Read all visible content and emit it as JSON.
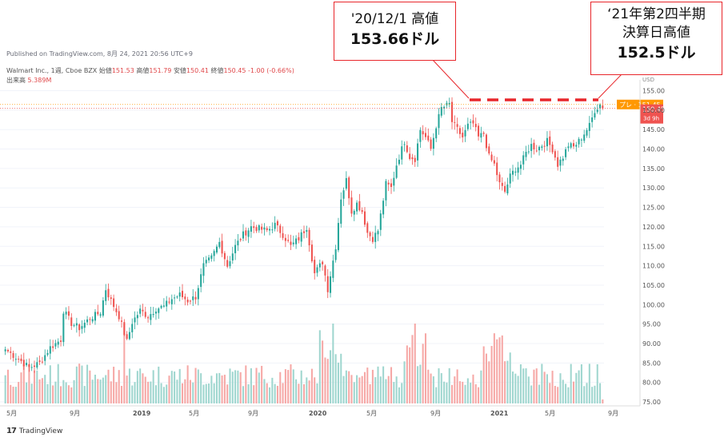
{
  "header": {
    "published": "Published on TradingView.com, 8月 24, 2021 20:56 UTC+9",
    "symbol": "Walmart Inc., 1週, Cboe BZX",
    "open_label": "始値",
    "open": "151.53",
    "high_label": "高値",
    "high": "151.79",
    "low_label": "安値",
    "low": "150.41",
    "close_label": "終値",
    "close": "150.45",
    "change": "-1.00 (-0.66%)",
    "volume_label": "出来高",
    "volume": "5.389M"
  },
  "callouts": {
    "left": {
      "line1": "'20/12/1 高値",
      "line2": "153.66ドル"
    },
    "right": {
      "line1": "‘21年第2四半期",
      "line2": "決算日高値",
      "line3": "152.5ドル"
    }
  },
  "footer": {
    "logo": "TradingView",
    "mark": "17"
  },
  "colors": {
    "up": "#26a69a",
    "down": "#ef5350",
    "vol_up": "#9fd6cf",
    "vol_down": "#f6a8a6",
    "callout": "#e8262b",
    "pre_market": "#ff9800",
    "last_price": "#ef5350"
  },
  "chart_data": {
    "type": "candlestick",
    "title": "Walmart Inc., 1週, Cboe BZX",
    "currency": "USD",
    "ylim": [
      75,
      155
    ],
    "y_ticks": [
      "155.00",
      "150.00",
      "145.00",
      "140.00",
      "135.00",
      "130.00",
      "125.00",
      "120.00",
      "115.00",
      "110.00",
      "105.00",
      "100.00",
      "95.00",
      "90.00",
      "85.00",
      "80.00",
      "75.00"
    ],
    "x_ticks": [
      "5月",
      "9月",
      "2019",
      "5月",
      "9月",
      "2020",
      "5月",
      "9月",
      "2021",
      "5月",
      "9月"
    ],
    "price_labels": {
      "pre_label": "プレ",
      "pre": "151.45",
      "last": "150.45",
      "countdown": "3d 9h"
    },
    "resistance_level": 153.66,
    "anchors": [
      [
        0,
        88.5
      ],
      [
        5,
        86.0
      ],
      [
        9,
        83.8
      ],
      [
        13,
        85.0
      ],
      [
        17,
        89.0
      ],
      [
        21,
        91.0
      ],
      [
        22,
        98.5
      ],
      [
        25,
        95.2
      ],
      [
        28,
        94.0
      ],
      [
        32,
        96.5
      ],
      [
        36,
        98.0
      ],
      [
        38,
        104.0
      ],
      [
        40,
        101.0
      ],
      [
        43,
        97.0
      ],
      [
        46,
        90.5
      ],
      [
        48,
        95.5
      ],
      [
        51,
        98.5
      ],
      [
        54,
        97.0
      ],
      [
        57,
        99.0
      ],
      [
        60,
        99.5
      ],
      [
        63,
        101.5
      ],
      [
        66,
        102.5
      ],
      [
        69,
        101.0
      ],
      [
        72,
        102.0
      ],
      [
        75,
        110.0
      ],
      [
        78,
        112.0
      ],
      [
        81,
        116.0
      ],
      [
        84,
        110.0
      ],
      [
        87,
        115.0
      ],
      [
        90,
        118.0
      ],
      [
        93,
        120.0
      ],
      [
        96,
        119.5
      ],
      [
        99,
        119.0
      ],
      [
        102,
        120.5
      ],
      [
        105,
        118.0
      ],
      [
        108,
        115.0
      ],
      [
        111,
        117.0
      ],
      [
        114,
        120.0
      ],
      [
        117,
        108.0
      ],
      [
        120,
        111.0
      ],
      [
        122,
        104.0
      ],
      [
        125,
        115.0
      ],
      [
        127,
        127.5
      ],
      [
        129,
        132.0
      ],
      [
        131,
        124.0
      ],
      [
        133,
        126.0
      ],
      [
        135,
        124.0
      ],
      [
        137,
        118.5
      ],
      [
        139,
        117.0
      ],
      [
        141,
        119.0
      ],
      [
        144,
        131.0
      ],
      [
        146,
        130.0
      ],
      [
        148,
        136.0
      ],
      [
        151,
        142.0
      ],
      [
        153,
        138.0
      ],
      [
        155,
        137.5
      ],
      [
        157,
        145.0
      ],
      [
        159,
        143.0
      ],
      [
        161,
        140.0
      ],
      [
        163,
        146.0
      ],
      [
        165,
        150.5
      ],
      [
        168,
        151.5
      ],
      [
        169,
        147.0
      ],
      [
        171,
        145.0
      ],
      [
        173,
        143.0
      ],
      [
        175,
        146.0
      ],
      [
        177,
        146.5
      ],
      [
        179,
        143.0
      ],
      [
        181,
        144.0
      ],
      [
        183,
        138.0
      ],
      [
        185,
        136.0
      ],
      [
        187,
        131.0
      ],
      [
        189,
        129.0
      ],
      [
        191,
        133.0
      ],
      [
        193,
        135.0
      ],
      [
        195,
        136.0
      ],
      [
        197,
        139.0
      ],
      [
        199,
        141.0
      ],
      [
        201,
        140.0
      ],
      [
        203,
        141.0
      ],
      [
        205,
        142.0
      ],
      [
        207,
        140.0
      ],
      [
        209,
        136.0
      ],
      [
        211,
        138.0
      ],
      [
        213,
        141.0
      ],
      [
        215,
        140.5
      ],
      [
        217,
        142.0
      ],
      [
        219,
        144.0
      ],
      [
        221,
        146.0
      ],
      [
        223,
        150.0
      ],
      [
        225,
        151.5
      ],
      [
        226,
        150.45
      ]
    ],
    "n_weeks": 227
  }
}
